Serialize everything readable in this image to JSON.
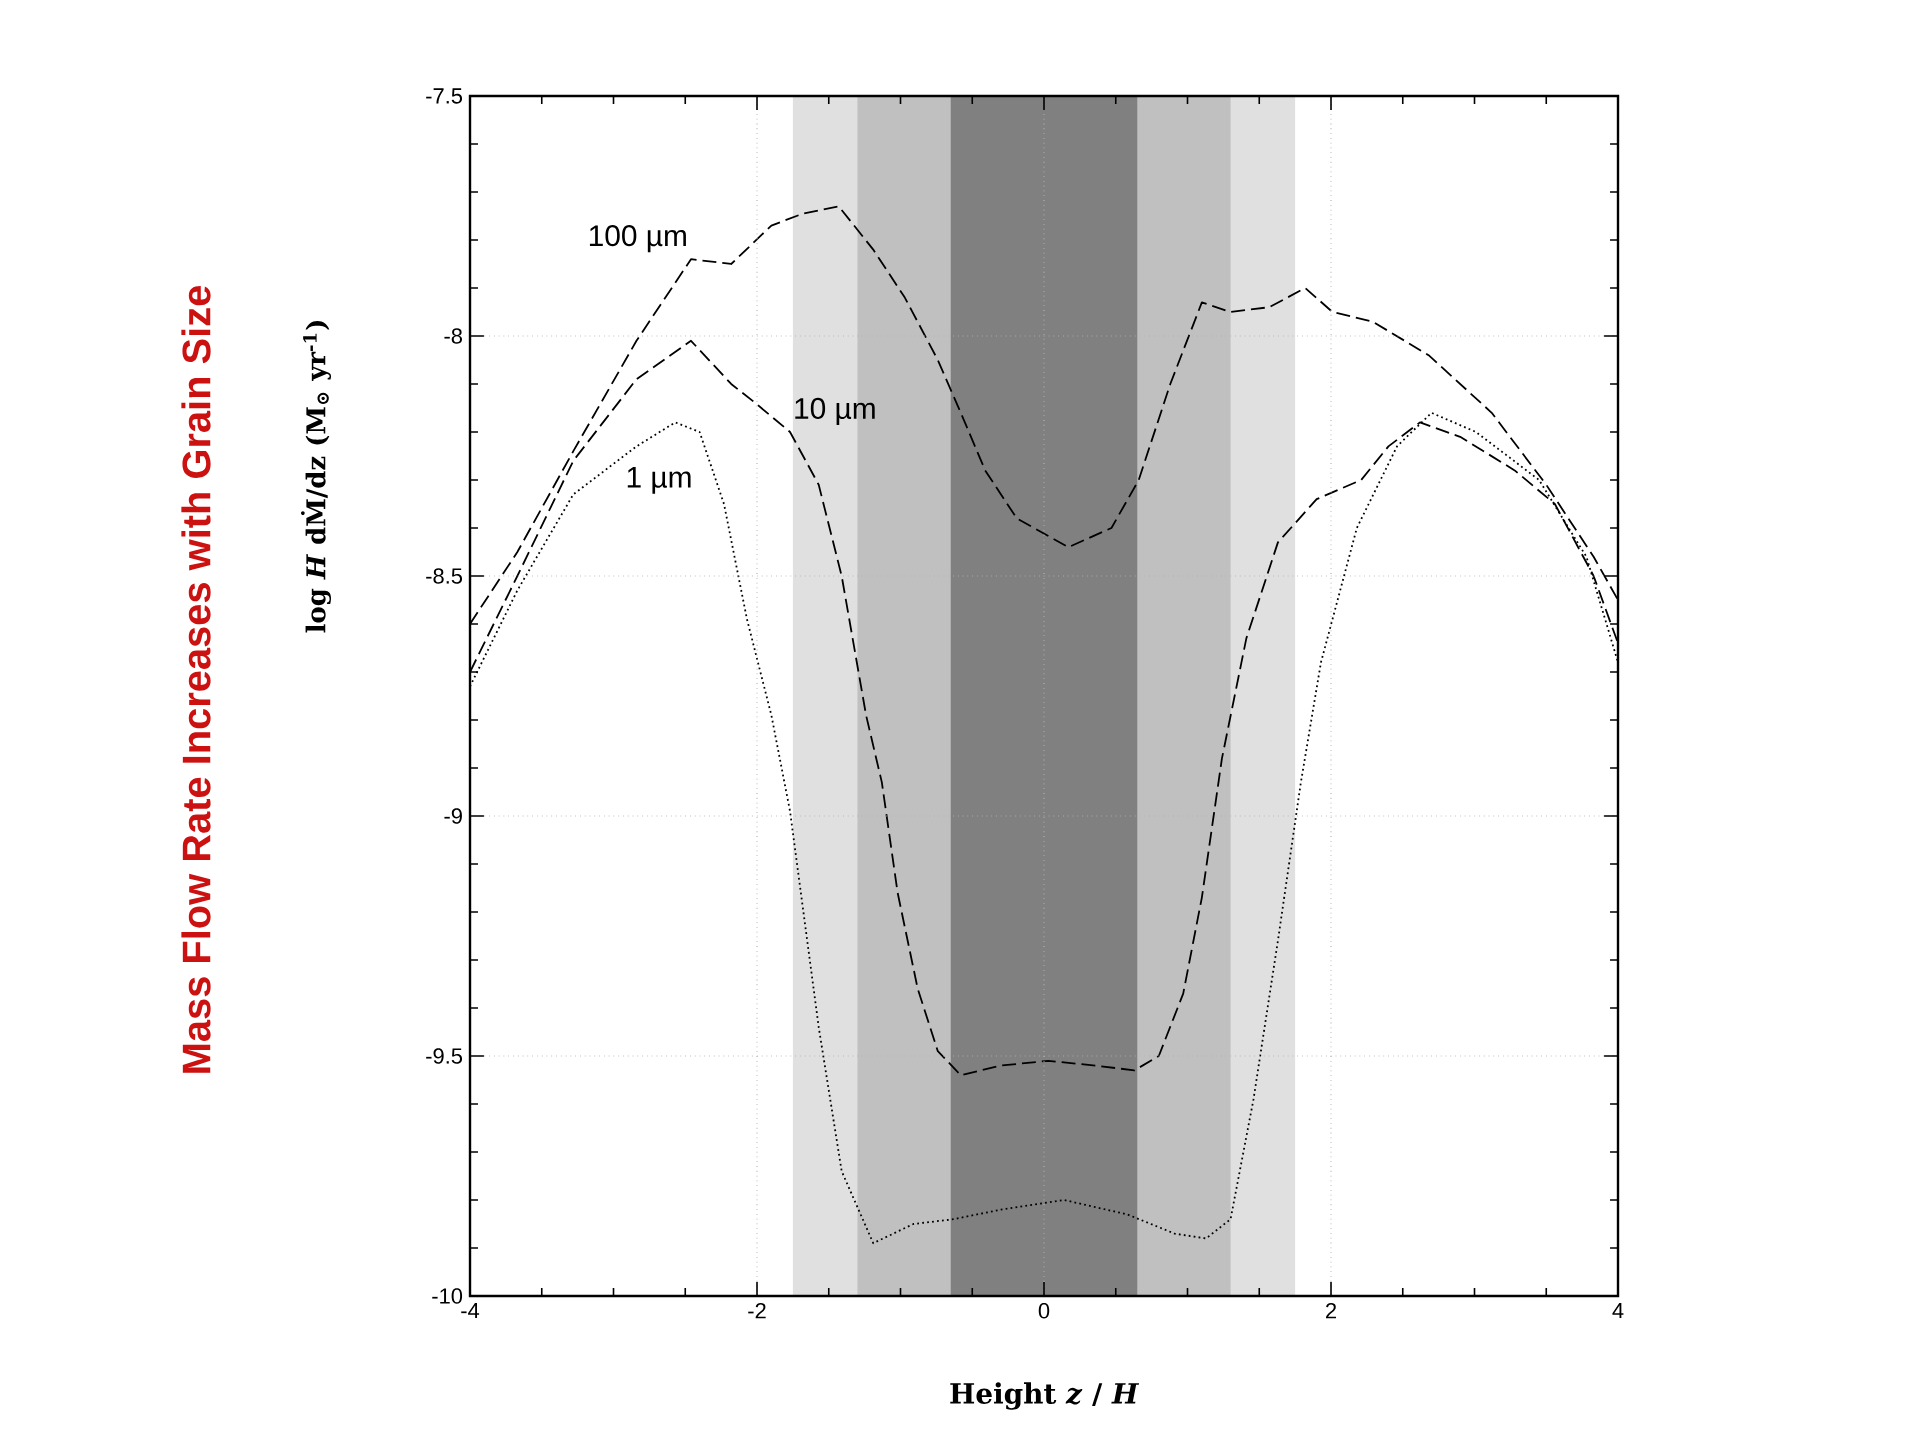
{
  "chart_data": {
    "type": "line",
    "title": "Mass Flow Rate Increases with Grain Size",
    "xlabel": "Height *z* / *H*",
    "ylabel": "log *H* dṀ/dz  (M$_{⊙}$ yr$^{-1}$)",
    "xlim": [
      -4,
      4
    ],
    "ylim": [
      -10,
      -7.5
    ],
    "xticks": [
      -4,
      -2,
      0,
      2,
      4
    ],
    "yticks": [
      -10,
      -9.5,
      -9,
      -8.5,
      -8,
      -7.5
    ],
    "grid": true,
    "marker": "none",
    "bands": [
      {
        "axis": "x",
        "from": -1.75,
        "to": 1.75,
        "color": "#e0e0e0"
      },
      {
        "axis": "x",
        "from": -1.3,
        "to": 1.3,
        "color": "#c0c0c0"
      },
      {
        "axis": "x",
        "from": -0.65,
        "to": 0.65,
        "color": "#808080"
      }
    ],
    "series": [
      {
        "name": "100 µm",
        "color": "#000000",
        "line_style": "dashed",
        "x": [
          -4,
          -3.67,
          -3.28,
          -2.84,
          -2.46,
          -2.18,
          -1.9,
          -1.68,
          -1.43,
          -1.19,
          -0.97,
          -0.74,
          -0.58,
          -0.41,
          -0.19,
          0.17,
          0.47,
          0.66,
          0.88,
          1.1,
          1.3,
          1.57,
          1.82,
          2.01,
          2.29,
          2.68,
          3.12,
          3.5,
          3.83,
          4
        ],
        "values": [
          -8.6,
          -8.45,
          -8.24,
          -8.01,
          -7.84,
          -7.85,
          -7.77,
          -7.745,
          -7.73,
          -7.82,
          -7.92,
          -8.05,
          -8.16,
          -8.28,
          -8.38,
          -8.44,
          -8.4,
          -8.3,
          -8.1,
          -7.93,
          -7.95,
          -7.94,
          -7.9,
          -7.95,
          -7.97,
          -8.04,
          -8.16,
          -8.31,
          -8.46,
          -8.55
        ]
      },
      {
        "name": "10 µm",
        "color": "#000000",
        "line_style": "dashed",
        "x": [
          -4,
          -3.67,
          -3.28,
          -2.84,
          -2.46,
          -2.18,
          -2.01,
          -1.77,
          -1.57,
          -1.41,
          -1.24,
          -1.13,
          -1.02,
          -0.88,
          -0.74,
          -0.58,
          -0.3,
          0.03,
          0.36,
          0.63,
          0.8,
          0.97,
          1.1,
          1.24,
          1.41,
          1.63,
          1.9,
          2.21,
          2.4,
          2.62,
          2.9,
          3.28,
          3.56,
          3.83,
          4
        ],
        "values": [
          -8.7,
          -8.5,
          -8.26,
          -8.09,
          -8.01,
          -8.1,
          -8.14,
          -8.2,
          -8.31,
          -8.5,
          -8.79,
          -8.93,
          -9.16,
          -9.36,
          -9.49,
          -9.54,
          -9.52,
          -9.51,
          -9.52,
          -9.53,
          -9.5,
          -9.37,
          -9.17,
          -8.88,
          -8.63,
          -8.43,
          -8.34,
          -8.3,
          -8.23,
          -8.18,
          -8.21,
          -8.28,
          -8.35,
          -8.5,
          -8.64
        ]
      },
      {
        "name": "1 µm",
        "color": "#000000",
        "line_style": "dotted",
        "x": [
          -4,
          -3.67,
          -3.28,
          -2.84,
          -2.57,
          -2.4,
          -2.23,
          -2.07,
          -1.9,
          -1.77,
          -1.57,
          -1.41,
          -1.19,
          -0.91,
          -0.63,
          -0.3,
          0.14,
          0.58,
          0.91,
          1.13,
          1.3,
          1.46,
          1.63,
          1.79,
          1.93,
          2.18,
          2.46,
          2.7,
          3.01,
          3.45,
          3.78,
          4
        ],
        "values": [
          -8.73,
          -8.53,
          -8.33,
          -8.23,
          -8.18,
          -8.2,
          -8.35,
          -8.59,
          -8.79,
          -8.99,
          -9.44,
          -9.74,
          -9.89,
          -9.85,
          -9.84,
          -9.82,
          -9.8,
          -9.83,
          -9.87,
          -9.88,
          -9.84,
          -9.59,
          -9.26,
          -8.93,
          -8.68,
          -8.4,
          -8.23,
          -8.16,
          -8.2,
          -8.3,
          -8.46,
          -8.68
        ]
      }
    ]
  }
}
